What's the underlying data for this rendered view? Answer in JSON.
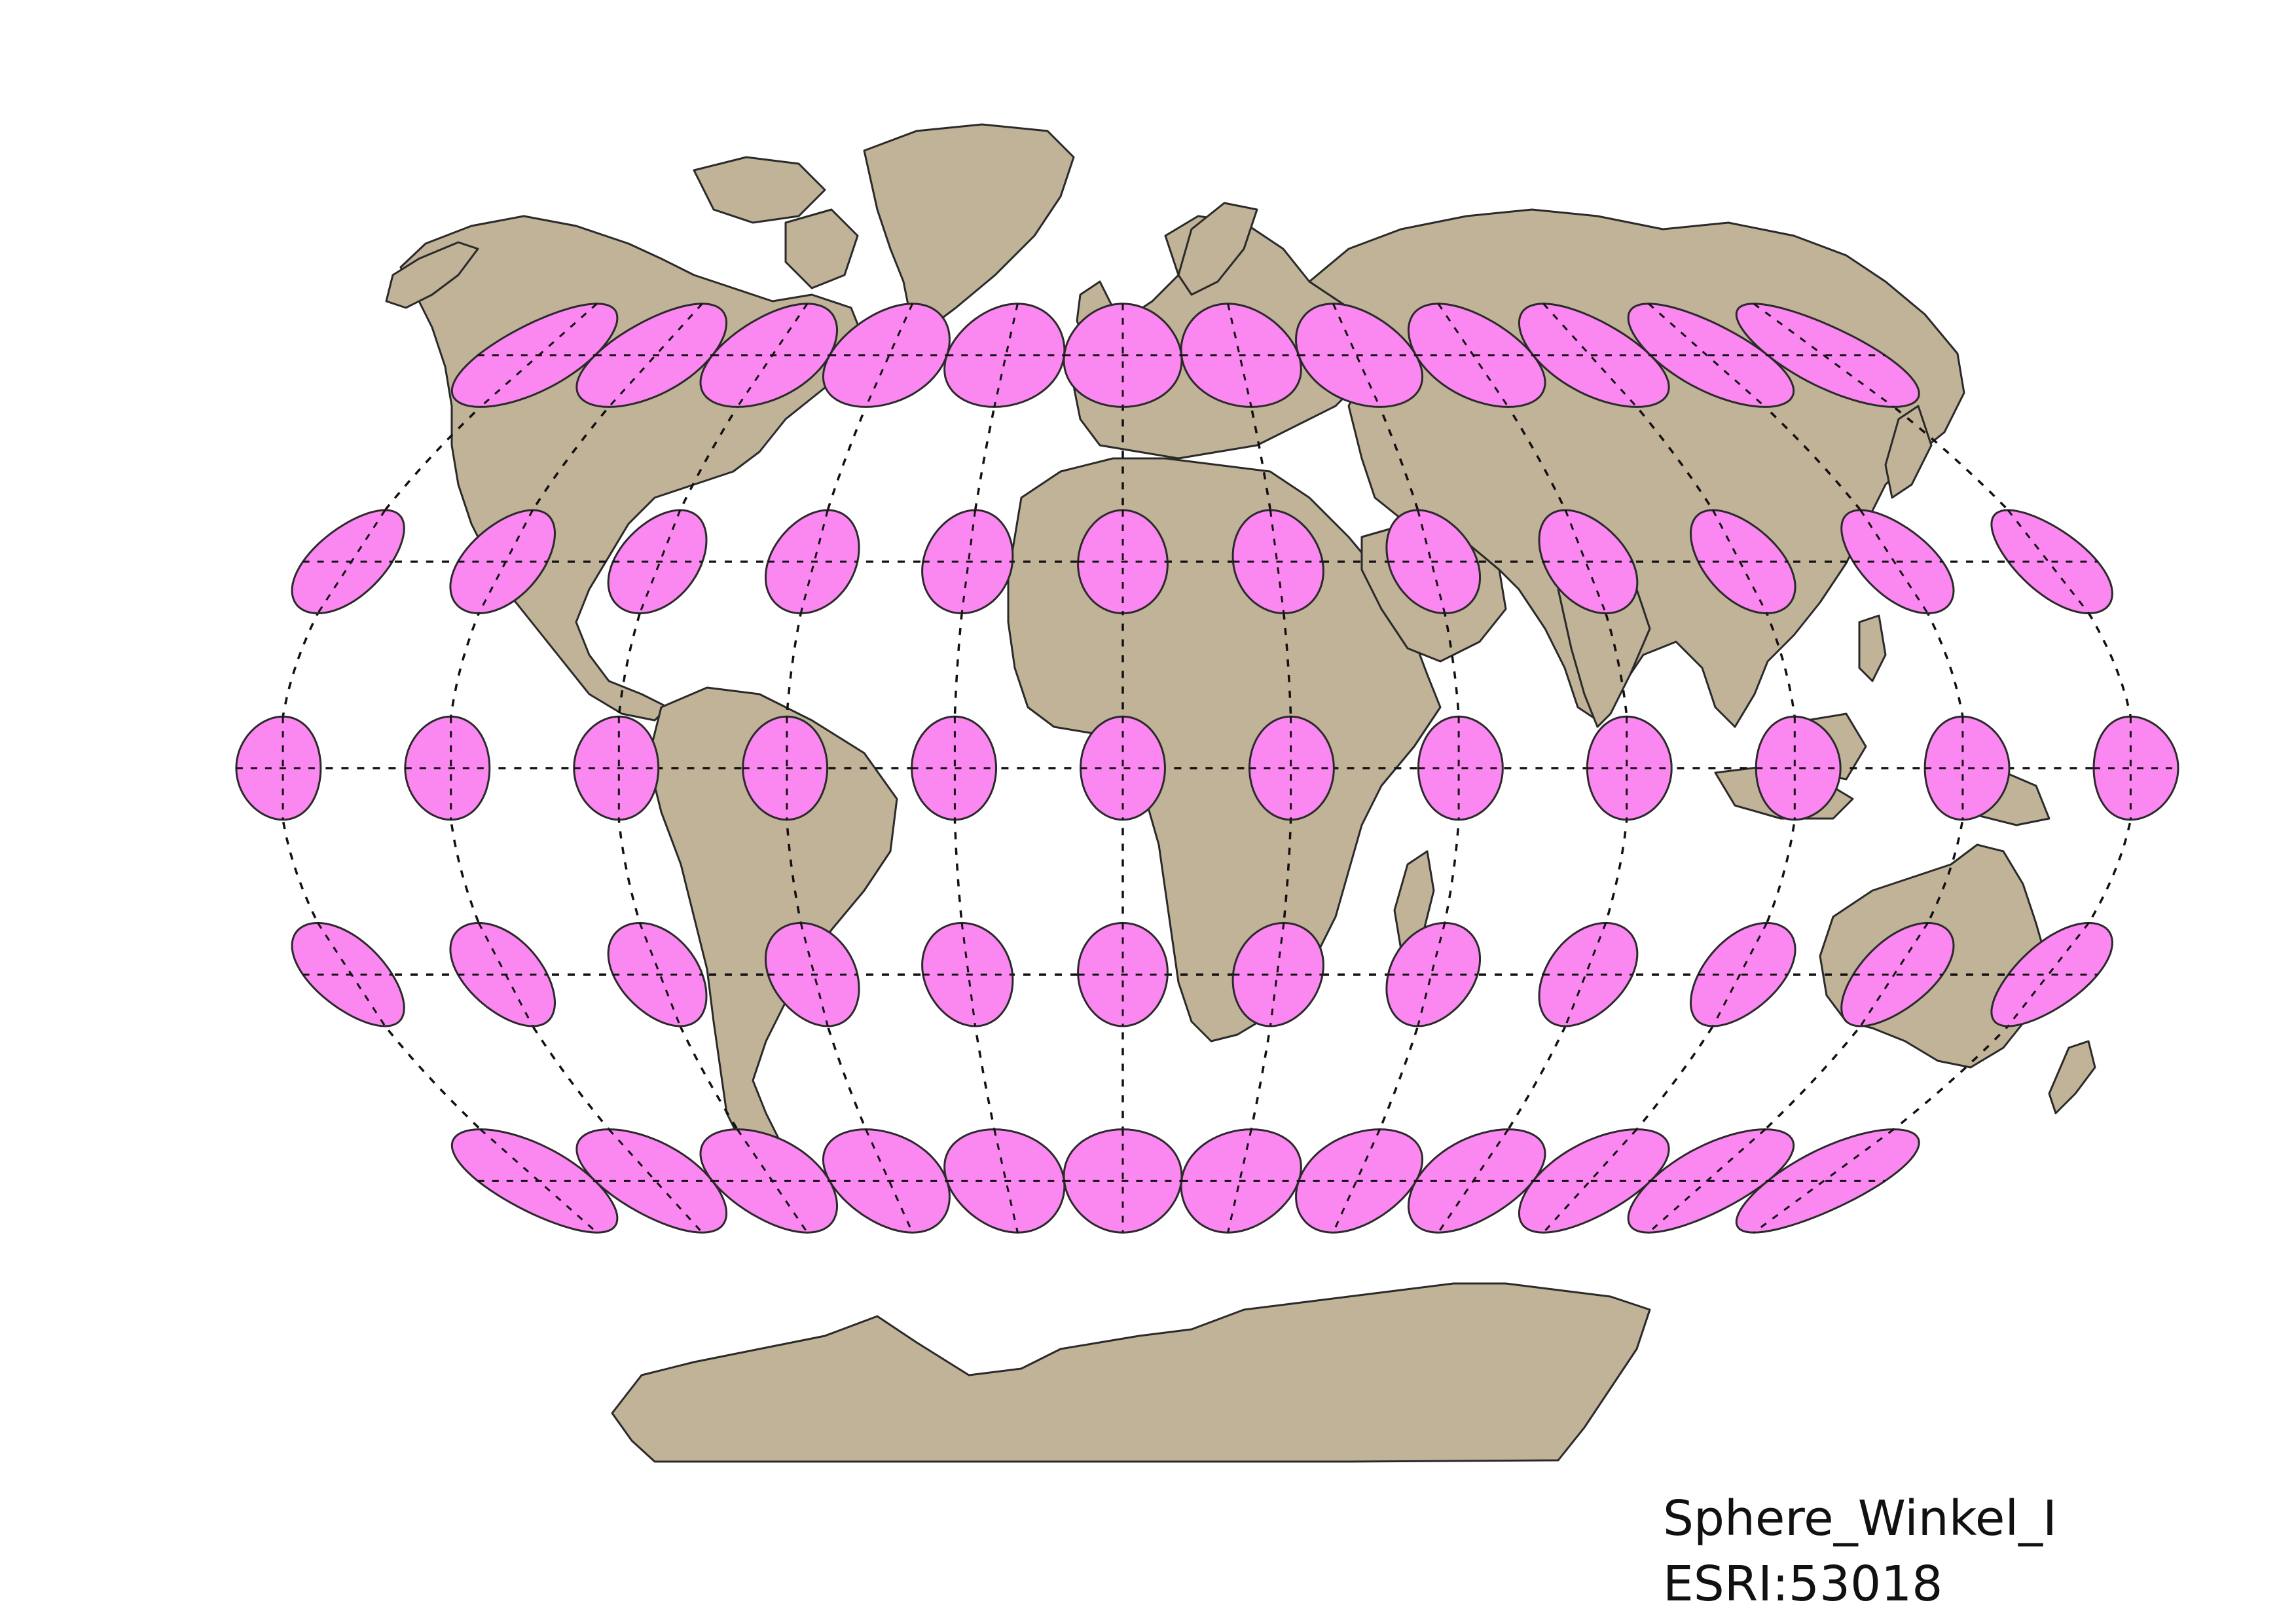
{
  "projection": {
    "name": "Sphere_Winkel_I",
    "code": "ESRI:53018"
  },
  "colors": {
    "land": "#c0b398",
    "coast": "#2a2a2a",
    "ellipse_fill": "#fb88f0",
    "ellipse_stroke": "#2a2a2a",
    "graticule": "#111111",
    "background": "#ffffff"
  },
  "graticule": {
    "latitudes": [
      60,
      30,
      0,
      -30,
      -60
    ],
    "longitudes": [
      -150,
      -120,
      -90,
      -60,
      -30,
      0,
      30,
      60,
      90,
      120,
      150,
      180
    ],
    "style": "dashed"
  },
  "tissot_indicatrix": {
    "latitudes": [
      60,
      30,
      0,
      -30,
      -60
    ],
    "longitudes": [
      -150,
      -120,
      -90,
      -60,
      -30,
      0,
      30,
      60,
      90,
      120,
      150,
      180
    ]
  }
}
